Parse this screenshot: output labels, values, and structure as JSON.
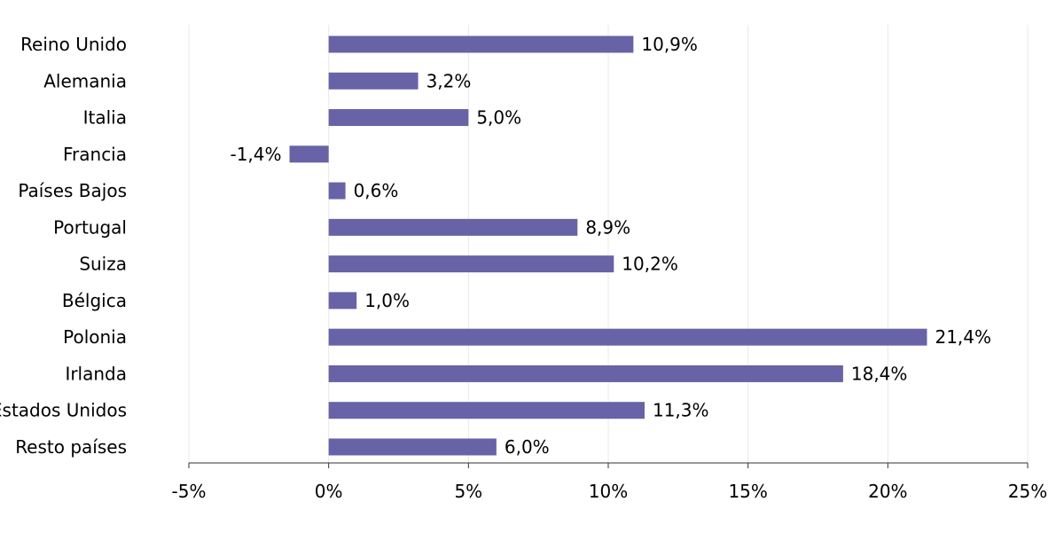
{
  "chart_data": {
    "type": "bar",
    "orientation": "horizontal",
    "categories": [
      "Reino Unido",
      "Alemania",
      "Italia",
      "Francia",
      "Países Bajos",
      "Portugal",
      "Suiza",
      "Bélgica",
      "Polonia",
      "Irlanda",
      "Estados Unidos",
      "Resto países"
    ],
    "values": [
      10.9,
      3.2,
      5.0,
      -1.4,
      0.6,
      8.9,
      10.2,
      1.0,
      21.4,
      18.4,
      11.3,
      6.0
    ],
    "value_labels": [
      "10,9%",
      "3,2%",
      "5,0%",
      "-1,4%",
      "0,6%",
      "8,9%",
      "10,2%",
      "1,0%",
      "21,4%",
      "18,4%",
      "11,3%",
      "6,0%"
    ],
    "xlim": [
      -5,
      25
    ],
    "xticks": [
      -5,
      0,
      5,
      10,
      15,
      20,
      25
    ],
    "xtick_labels": [
      "-5%",
      "0%",
      "5%",
      "10%",
      "15%",
      "20%",
      "25%"
    ],
    "title": "",
    "xlabel": "",
    "ylabel": "",
    "grid": "vertical",
    "legend": "none",
    "bar_color": "#6863a6"
  }
}
